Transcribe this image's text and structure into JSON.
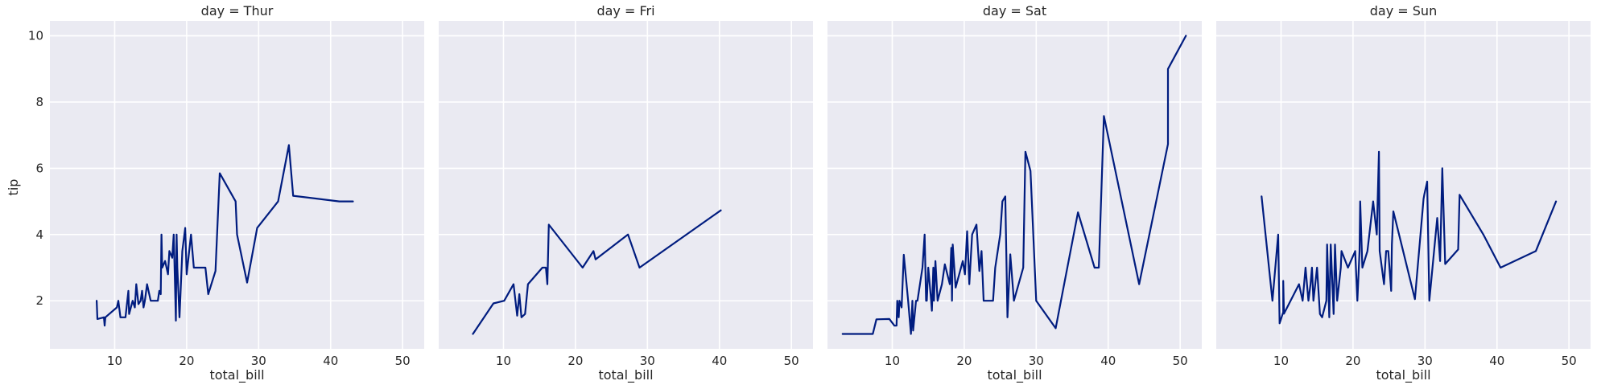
{
  "chart_data": {
    "type": "line",
    "series_color": "#001c7f",
    "background_color": "#eaeaf2",
    "grid": true,
    "xlabel": "total_bill",
    "ylabel": "tip",
    "xlim": [
      1.0,
      53.0
    ],
    "ylim": [
      0.55,
      10.45
    ],
    "xticks": [
      10,
      20,
      30,
      40,
      50
    ],
    "yticks": [
      2,
      4,
      6,
      8,
      10
    ],
    "panels": [
      {
        "title": "day = Thur",
        "points": [
          [
            7.5,
            2.0
          ],
          [
            7.6,
            1.45
          ],
          [
            8.5,
            1.5
          ],
          [
            8.6,
            1.25
          ],
          [
            8.7,
            1.5
          ],
          [
            9.5,
            1.65
          ],
          [
            10.3,
            1.8
          ],
          [
            10.5,
            2.0
          ],
          [
            10.8,
            1.5
          ],
          [
            11.5,
            1.5
          ],
          [
            11.9,
            2.3
          ],
          [
            12.0,
            1.6
          ],
          [
            12.5,
            2.0
          ],
          [
            12.8,
            1.8
          ],
          [
            13.0,
            2.5
          ],
          [
            13.3,
            1.9
          ],
          [
            13.6,
            2.0
          ],
          [
            13.8,
            2.3
          ],
          [
            14.0,
            1.8
          ],
          [
            14.2,
            2.0
          ],
          [
            14.5,
            2.5
          ],
          [
            15.0,
            2.0
          ],
          [
            15.5,
            2.0
          ],
          [
            16.0,
            2.0
          ],
          [
            16.2,
            2.3
          ],
          [
            16.4,
            2.2
          ],
          [
            16.5,
            4.0
          ],
          [
            16.6,
            3.0
          ],
          [
            17.0,
            3.2
          ],
          [
            17.4,
            2.8
          ],
          [
            17.6,
            3.5
          ],
          [
            17.8,
            3.4
          ],
          [
            18.0,
            3.3
          ],
          [
            18.2,
            4.0
          ],
          [
            18.3,
            3.2
          ],
          [
            18.5,
            1.4
          ],
          [
            18.6,
            4.0
          ],
          [
            18.7,
            3.0
          ],
          [
            19.0,
            1.5
          ],
          [
            19.4,
            3.5
          ],
          [
            19.8,
            4.2
          ],
          [
            20.0,
            2.8
          ],
          [
            20.6,
            4.0
          ],
          [
            21.0,
            3.0
          ],
          [
            22.6,
            3.0
          ],
          [
            23.0,
            2.2
          ],
          [
            24.0,
            2.9
          ],
          [
            24.6,
            5.85
          ],
          [
            26.8,
            5.0
          ],
          [
            27.0,
            4.0
          ],
          [
            28.4,
            2.55
          ],
          [
            29.8,
            4.2
          ],
          [
            32.7,
            5.0
          ],
          [
            34.2,
            6.7
          ],
          [
            34.8,
            5.17
          ],
          [
            41.2,
            5.0
          ],
          [
            43.1,
            5.0
          ]
        ]
      },
      {
        "title": "day = Fri",
        "points": [
          [
            5.75,
            1.0
          ],
          [
            8.6,
            1.92
          ],
          [
            10.1,
            2.0
          ],
          [
            11.4,
            2.5
          ],
          [
            11.9,
            1.55
          ],
          [
            12.2,
            2.2
          ],
          [
            12.5,
            1.5
          ],
          [
            13.0,
            1.6
          ],
          [
            13.4,
            2.5
          ],
          [
            15.4,
            3.0
          ],
          [
            15.9,
            3.0
          ],
          [
            16.1,
            2.5
          ],
          [
            16.3,
            4.3
          ],
          [
            21.0,
            3.0
          ],
          [
            22.5,
            3.5
          ],
          [
            22.8,
            3.25
          ],
          [
            27.3,
            4.0
          ],
          [
            28.9,
            3.0
          ],
          [
            40.2,
            4.73
          ]
        ]
      },
      {
        "title": "day = Sat",
        "points": [
          [
            3.1,
            1.0
          ],
          [
            7.3,
            1.0
          ],
          [
            7.8,
            1.44
          ],
          [
            9.6,
            1.45
          ],
          [
            10.3,
            1.25
          ],
          [
            10.6,
            1.25
          ],
          [
            10.7,
            2.0
          ],
          [
            10.9,
            1.5
          ],
          [
            11.0,
            2.0
          ],
          [
            11.3,
            1.8
          ],
          [
            11.6,
            3.39
          ],
          [
            12.2,
            2.0
          ],
          [
            12.6,
            1.0
          ],
          [
            12.8,
            2.0
          ],
          [
            12.9,
            1.1
          ],
          [
            13.3,
            2.0
          ],
          [
            13.5,
            2.0
          ],
          [
            14.2,
            3.0
          ],
          [
            14.5,
            4.0
          ],
          [
            14.7,
            2.0
          ],
          [
            14.8,
            2.0
          ],
          [
            15.0,
            3.0
          ],
          [
            15.4,
            2.0
          ],
          [
            15.5,
            1.7
          ],
          [
            15.7,
            3.0
          ],
          [
            15.8,
            2.0
          ],
          [
            16.0,
            3.2
          ],
          [
            16.3,
            2.0
          ],
          [
            16.9,
            2.5
          ],
          [
            17.3,
            3.1
          ],
          [
            18.0,
            2.5
          ],
          [
            18.2,
            3.6
          ],
          [
            18.3,
            2.0
          ],
          [
            18.4,
            3.7
          ],
          [
            18.8,
            2.4
          ],
          [
            19.8,
            3.2
          ],
          [
            20.1,
            2.8
          ],
          [
            20.4,
            4.1
          ],
          [
            20.7,
            2.5
          ],
          [
            21.1,
            4.0
          ],
          [
            21.7,
            4.3
          ],
          [
            22.1,
            2.9
          ],
          [
            22.4,
            3.5
          ],
          [
            22.7,
            2.0
          ],
          [
            24.0,
            2.0
          ],
          [
            24.3,
            3.0
          ],
          [
            25.0,
            4.0
          ],
          [
            25.3,
            5.0
          ],
          [
            25.7,
            5.15
          ],
          [
            26.0,
            1.5
          ],
          [
            26.4,
            3.4
          ],
          [
            26.9,
            2.0
          ],
          [
            28.2,
            3.0
          ],
          [
            28.5,
            6.5
          ],
          [
            29.2,
            5.92
          ],
          [
            30.0,
            2.0
          ],
          [
            32.7,
            1.17
          ],
          [
            35.8,
            4.67
          ],
          [
            38.1,
            3.0
          ],
          [
            38.7,
            3.0
          ],
          [
            39.4,
            7.58
          ],
          [
            44.3,
            2.5
          ],
          [
            48.3,
            6.73
          ],
          [
            48.3,
            9.0
          ],
          [
            50.8,
            10.0
          ]
        ]
      },
      {
        "title": "day = Sun",
        "points": [
          [
            7.3,
            5.15
          ],
          [
            8.8,
            2.0
          ],
          [
            9.6,
            4.0
          ],
          [
            9.8,
            1.32
          ],
          [
            10.3,
            1.66
          ],
          [
            10.3,
            2.6
          ],
          [
            10.4,
            1.61
          ],
          [
            12.5,
            2.5
          ],
          [
            13.0,
            2.0
          ],
          [
            13.4,
            3.0
          ],
          [
            13.8,
            2.0
          ],
          [
            14.1,
            2.5
          ],
          [
            14.3,
            3.0
          ],
          [
            14.5,
            2.0
          ],
          [
            15.0,
            3.0
          ],
          [
            15.4,
            1.6
          ],
          [
            15.7,
            1.5
          ],
          [
            16.3,
            2.0
          ],
          [
            16.4,
            3.7
          ],
          [
            16.7,
            1.5
          ],
          [
            16.9,
            3.7
          ],
          [
            17.3,
            1.6
          ],
          [
            17.5,
            3.7
          ],
          [
            17.8,
            2.0
          ],
          [
            18.3,
            3.0
          ],
          [
            18.4,
            3.5
          ],
          [
            19.3,
            3.0
          ],
          [
            20.3,
            3.5
          ],
          [
            20.6,
            2.0
          ],
          [
            20.9,
            3.5
          ],
          [
            21.0,
            5.0
          ],
          [
            21.3,
            3.0
          ],
          [
            22.0,
            3.5
          ],
          [
            22.8,
            5.0
          ],
          [
            23.3,
            4.0
          ],
          [
            23.6,
            6.5
          ],
          [
            23.7,
            3.5
          ],
          [
            24.3,
            2.5
          ],
          [
            24.6,
            3.5
          ],
          [
            24.9,
            3.5
          ],
          [
            25.3,
            2.3
          ],
          [
            25.4,
            3.7
          ],
          [
            25.6,
            4.7
          ],
          [
            26.4,
            4.0
          ],
          [
            28.6,
            2.05
          ],
          [
            29.8,
            5.07
          ],
          [
            29.9,
            5.2
          ],
          [
            30.3,
            5.6
          ],
          [
            30.6,
            2.0
          ],
          [
            31.7,
            4.5
          ],
          [
            32.1,
            3.2
          ],
          [
            32.4,
            6.0
          ],
          [
            32.8,
            3.11
          ],
          [
            34.6,
            3.55
          ],
          [
            34.8,
            5.2
          ],
          [
            38.1,
            4.0
          ],
          [
            40.5,
            3.0
          ],
          [
            45.4,
            3.5
          ],
          [
            48.2,
            5.0
          ]
        ]
      }
    ]
  }
}
